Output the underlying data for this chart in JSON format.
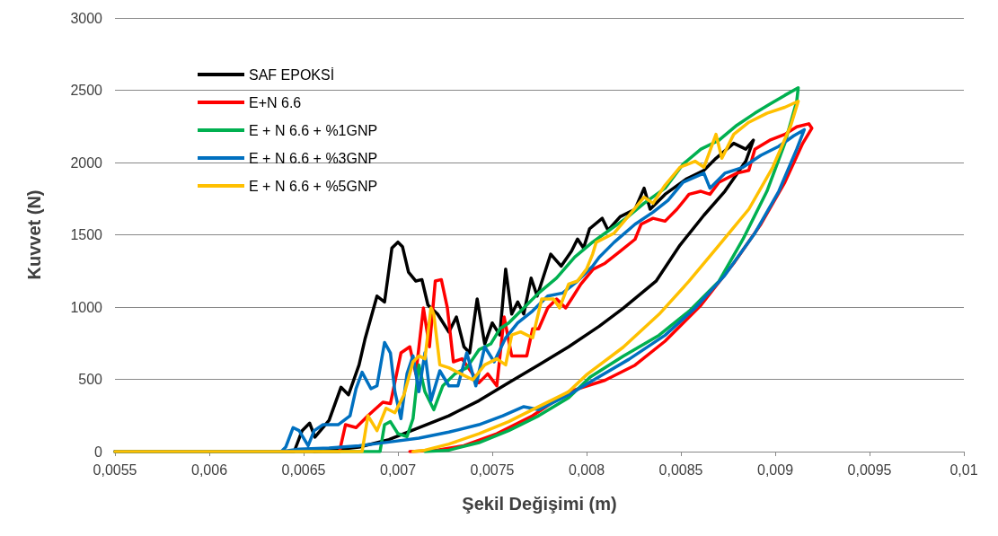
{
  "chart_data": {
    "type": "line",
    "xlabel": "Şekil Değişimi (m)",
    "ylabel": "Kuvvet (N)",
    "xlim": [
      0.0055,
      0.01
    ],
    "xticks": [
      {
        "value": 0.0055,
        "label": "0,0055"
      },
      {
        "value": 0.006,
        "label": "0,006"
      },
      {
        "value": 0.0065,
        "label": "0,0065"
      },
      {
        "value": 0.007,
        "label": "0,007"
      },
      {
        "value": 0.0075,
        "label": "0,0075"
      },
      {
        "value": 0.008,
        "label": "0,008"
      },
      {
        "value": 0.0085,
        "label": "0,0085"
      },
      {
        "value": 0.009,
        "label": "0,009"
      },
      {
        "value": 0.0095,
        "label": "0,0095"
      },
      {
        "value": 0.01,
        "label": "0,01"
      }
    ],
    "ylim": [
      0,
      3000
    ],
    "yticks": [
      0,
      500,
      1000,
      1500,
      2000,
      2500,
      3000
    ],
    "grid": "y",
    "legend": "top left",
    "marker": "none",
    "line_style": "solid",
    "series": [
      {
        "name": "SAF EPOKSİ",
        "color": "#000000",
        "x": [
          0.0055,
          0.00645,
          0.006492,
          0.006532,
          0.00656,
          0.006635,
          0.006698,
          0.006738,
          0.006794,
          0.006825,
          0.006889,
          0.006929,
          0.006968,
          0.007,
          0.007024,
          0.007056,
          0.007095,
          0.007127,
          0.007159,
          0.00721,
          0.00727,
          0.00731,
          0.00735,
          0.00738,
          0.00742,
          0.00746,
          0.0075,
          0.00754,
          0.007571,
          0.007603,
          0.007635,
          0.007667,
          0.007706,
          0.007738,
          0.00781,
          0.007865,
          0.00792,
          0.007952,
          0.007984,
          0.008016,
          0.008083,
          0.008114,
          0.008178,
          0.008257,
          0.008305,
          0.008337,
          0.008416,
          0.008527,
          0.008622,
          0.008686,
          0.00878,
          0.008844,
          0.008884,
          0.008844,
          0.008733,
          0.008622,
          0.008495,
          0.008368,
          0.008194,
          0.008067,
          0.007905,
          0.007746,
          0.007587,
          0.007429,
          0.00727,
          0.007111,
          0.006952,
          0.006794,
          0.006635,
          0.006556
        ],
        "values": [
          0,
          0,
          145,
          197,
          100,
          217,
          445,
          393,
          600,
          776,
          1076,
          1035,
          1408,
          1449,
          1418,
          1242,
          1180,
          1190,
          1014,
          952,
          828,
          931,
          725,
          683,
          1056,
          745,
          890,
          807,
          1263,
          952,
          1035,
          952,
          1200,
          1076,
          1366,
          1283,
          1387,
          1470,
          1408,
          1542,
          1614,
          1531,
          1625,
          1677,
          1822,
          1677,
          1780,
          1884,
          1946,
          2029,
          2133,
          2092,
          2154,
          2009,
          1801,
          1635,
          1428,
          1179,
          992,
          867,
          725,
          600,
          476,
          352,
          248,
          166,
          83,
          31,
          10,
          0
        ]
      },
      {
        "name": "E+N 6.6",
        "color": "#ff0000",
        "x": [
          0.0055,
          0.00669,
          0.006722,
          0.006778,
          0.006841,
          0.00692,
          0.00696,
          0.007016,
          0.007063,
          0.007095,
          0.007135,
          0.007167,
          0.007198,
          0.00723,
          0.007262,
          0.007294,
          0.00734,
          0.007429,
          0.007476,
          0.007524,
          0.007563,
          0.007603,
          0.007683,
          0.007714,
          0.007746,
          0.007794,
          0.007841,
          0.007889,
          0.00792,
          0.00797,
          0.008035,
          0.008098,
          0.008178,
          0.008257,
          0.008289,
          0.008352,
          0.008416,
          0.008479,
          0.008543,
          0.008606,
          0.008654,
          0.008702,
          0.008797,
          0.00886,
          0.008892,
          0.008971,
          0.009051,
          0.009114,
          0.009178,
          0.009194,
          0.009146,
          0.009051,
          0.008924,
          0.00878,
          0.008606,
          0.008416,
          0.008257,
          0.008098,
          0.007905,
          0.007714,
          0.007524,
          0.007349,
          0.007206,
          0.007063
        ],
        "values": [
          0,
          0,
          186,
          166,
          248,
          342,
          332,
          683,
          725,
          538,
          994,
          725,
          1180,
          1190,
          994,
          621,
          642,
          476,
          538,
          455,
          931,
          662,
          662,
          849,
          849,
          994,
          1056,
          994,
          1056,
          1159,
          1262,
          1303,
          1386,
          1469,
          1573,
          1614,
          1594,
          1677,
          1780,
          1801,
          1780,
          1863,
          1926,
          1946,
          2092,
          2154,
          2195,
          2247,
          2268,
          2237,
          2133,
          1863,
          1573,
          1303,
          1013,
          764,
          598,
          494,
          414,
          248,
          124,
          41,
          10,
          0
        ]
      },
      {
        "name": "E + N 6.6 + %1GNP",
        "color": "#00b050",
        "x": [
          0.0055,
          0.006905,
          0.006929,
          0.00696,
          0.007,
          0.007048,
          0.00708,
          0.007111,
          0.007143,
          0.00719,
          0.007238,
          0.007302,
          0.007365,
          0.007429,
          0.007492,
          0.00754,
          0.007587,
          0.007667,
          0.007746,
          0.007841,
          0.007937,
          0.008032,
          0.008098,
          0.008209,
          0.008305,
          0.008416,
          0.008511,
          0.008606,
          0.008702,
          0.008797,
          0.008892,
          0.008971,
          0.009051,
          0.009122,
          0.009114,
          0.009051,
          0.008956,
          0.008829,
          0.008702,
          0.008543,
          0.008384,
          0.008194,
          0.008019,
          0.007905,
          0.007746,
          0.007587,
          0.007429,
          0.00727,
          0.007143
        ],
        "values": [
          0,
          0,
          186,
          207,
          124,
          104,
          228,
          600,
          414,
          290,
          455,
          538,
          580,
          704,
          745,
          849,
          890,
          994,
          1097,
          1201,
          1346,
          1449,
          1511,
          1614,
          1718,
          1822,
          1988,
          2092,
          2154,
          2258,
          2341,
          2403,
          2465,
          2517,
          2424,
          2133,
          1801,
          1469,
          1179,
          971,
          805,
          660,
          515,
          373,
          248,
          145,
          62,
          10,
          0
        ]
      },
      {
        "name": "E + N 6.6 + %3GNP",
        "color": "#0070c0",
        "x": [
          0.0055,
          0.006381,
          0.006405,
          0.006444,
          0.006476,
          0.006524,
          0.006556,
          0.006603,
          0.006683,
          0.006746,
          0.006778,
          0.00681,
          0.006857,
          0.006889,
          0.006929,
          0.00696,
          0.006984,
          0.007016,
          0.007048,
          0.00708,
          0.007111,
          0.007143,
          0.007175,
          0.007222,
          0.00727,
          0.007318,
          0.007365,
          0.007413,
          0.00746,
          0.00751,
          0.007571,
          0.007635,
          0.007714,
          0.007794,
          0.007873,
          0.007952,
          0.008032,
          0.008067,
          0.008146,
          0.008257,
          0.008352,
          0.008432,
          0.008511,
          0.008622,
          0.008654,
          0.008733,
          0.008829,
          0.008924,
          0.009019,
          0.009098,
          0.009154,
          0.009114,
          0.009019,
          0.008892,
          0.008733,
          0.008575,
          0.008416,
          0.008225,
          0.008035,
          0.007905,
          0.007746,
          0.007667,
          0.007556,
          0.007429,
          0.00727,
          0.007111,
          0.006952,
          0.006794,
          0.006635,
          0.006476,
          0.006381
        ],
        "values": [
          0,
          0,
          31,
          166,
          145,
          41,
          145,
          186,
          186,
          248,
          435,
          549,
          435,
          455,
          755,
          683,
          414,
          228,
          538,
          662,
          414,
          683,
          352,
          559,
          455,
          455,
          683,
          455,
          725,
          621,
          787,
          890,
          973,
          1076,
          1097,
          1180,
          1283,
          1345,
          1448,
          1573,
          1656,
          1739,
          1863,
          1926,
          1822,
          1926,
          1967,
          2050,
          2112,
          2185,
          2227,
          2092,
          1801,
          1511,
          1220,
          992,
          805,
          639,
          494,
          393,
          290,
          311,
          248,
          186,
          135,
          93,
          66,
          41,
          25,
          17,
          0
        ]
      },
      {
        "name": "E + N 6.6 + %5GNP",
        "color": "#ffc000",
        "x": [
          0.0055,
          0.00681,
          0.006841,
          0.006889,
          0.006937,
          0.006984,
          0.007032,
          0.00708,
          0.007111,
          0.007143,
          0.007175,
          0.00719,
          0.007222,
          0.00727,
          0.007333,
          0.007397,
          0.00746,
          0.007524,
          0.007571,
          0.007603,
          0.00765,
          0.007714,
          0.007762,
          0.007825,
          0.007857,
          0.007905,
          0.007952,
          0.008,
          0.008032,
          0.008051,
          0.008146,
          0.008225,
          0.008305,
          0.008352,
          0.008416,
          0.008495,
          0.008575,
          0.008622,
          0.008686,
          0.008717,
          0.00878,
          0.00886,
          0.008956,
          0.009051,
          0.009122,
          0.009083,
          0.008987,
          0.00886,
          0.008702,
          0.008543,
          0.008384,
          0.008194,
          0.008003,
          0.007905,
          0.007746,
          0.007587,
          0.007429,
          0.00727,
          0.007143,
          0.00708
        ],
        "values": [
          0,
          0,
          248,
          145,
          300,
          269,
          393,
          621,
          662,
          642,
          994,
          952,
          600,
          580,
          538,
          497,
          600,
          642,
          600,
          807,
          828,
          787,
          1056,
          1056,
          994,
          1159,
          1180,
          1263,
          1366,
          1448,
          1511,
          1635,
          1760,
          1718,
          1843,
          1967,
          2009,
          1967,
          2195,
          2029,
          2195,
          2278,
          2341,
          2382,
          2424,
          2258,
          1967,
          1677,
          1428,
          1179,
          950,
          722,
          535,
          414,
          311,
          207,
          124,
          52,
          10,
          0
        ]
      }
    ]
  }
}
